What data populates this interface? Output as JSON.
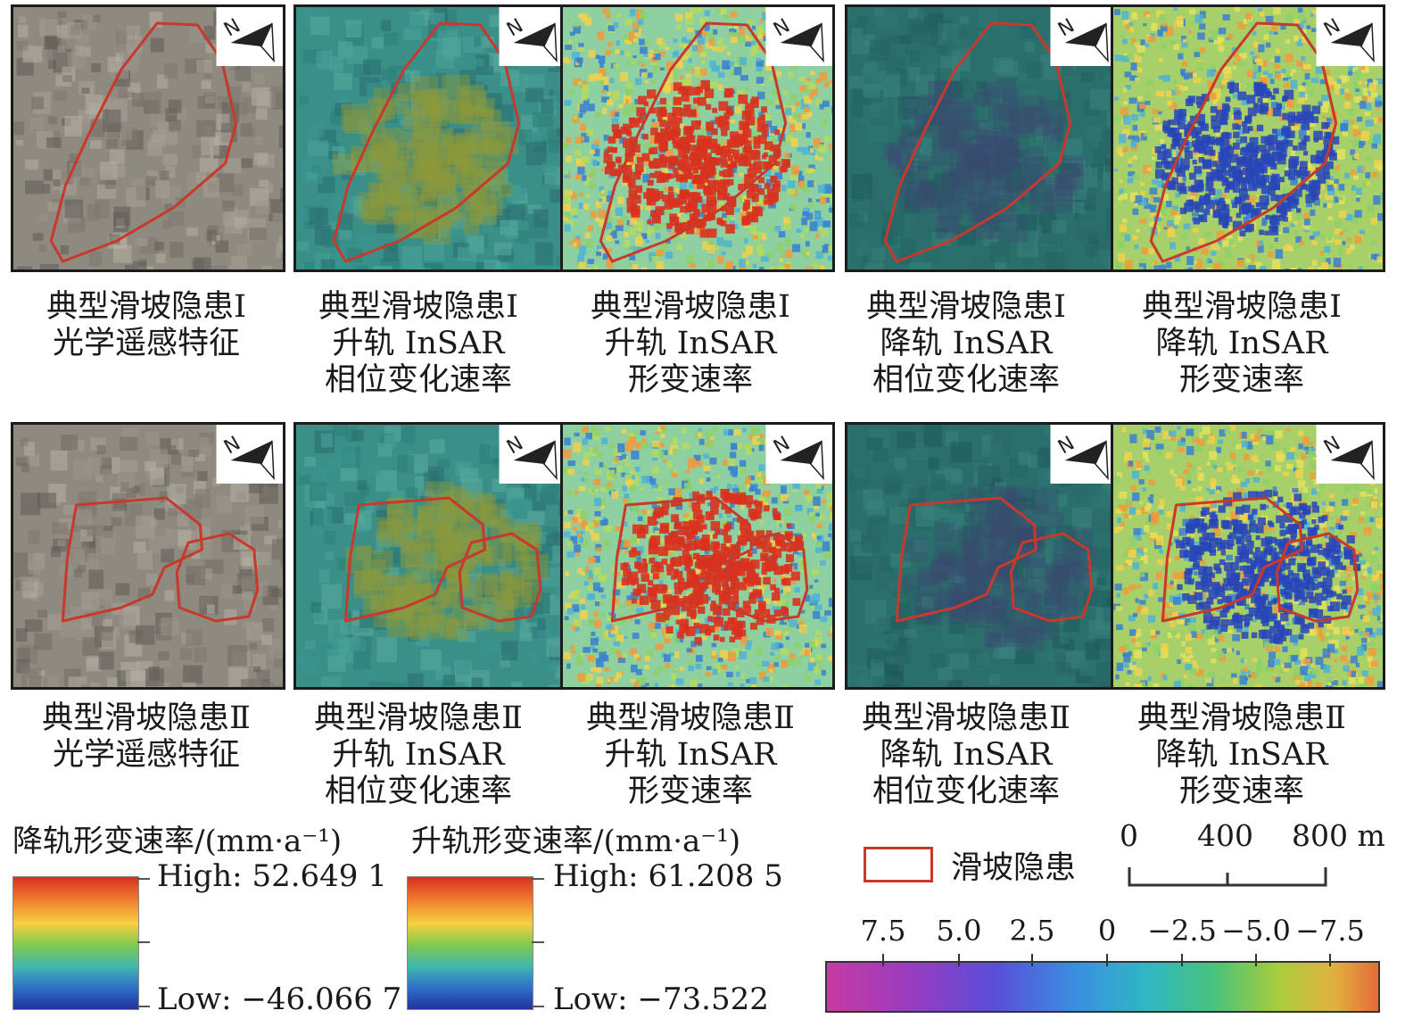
{
  "panels": [
    {
      "caption": [
        "典型滑坡隐患Ⅰ",
        "光学遥感特征"
      ],
      "style": "optical",
      "shape": "I"
    },
    {
      "caption": [
        "典型滑坡隐患Ⅰ",
        "升轨 InSAR",
        "相位变化速率"
      ],
      "style": "phase-warm",
      "shape": "I"
    },
    {
      "caption": [
        "典型滑坡隐患Ⅰ",
        "升轨 InSAR",
        "形变速率"
      ],
      "style": "def-red",
      "shape": "I"
    },
    {
      "caption": [
        "典型滑坡隐患Ⅰ",
        "降轨 InSAR",
        "相位变化速率"
      ],
      "style": "phase-dark",
      "shape": "I"
    },
    {
      "caption": [
        "典型滑坡隐患Ⅰ",
        "降轨 InSAR",
        "形变速率"
      ],
      "style": "def-blue",
      "shape": "I"
    },
    {
      "caption": [
        "典型滑坡隐患Ⅱ",
        "光学遥感特征"
      ],
      "style": "optical",
      "shape": "II"
    },
    {
      "caption": [
        "典型滑坡隐患Ⅱ",
        "升轨 InSAR",
        "相位变化速率"
      ],
      "style": "phase-warm",
      "shape": "II"
    },
    {
      "caption": [
        "典型滑坡隐患Ⅱ",
        "升轨 InSAR",
        "形变速率"
      ],
      "style": "def-red",
      "shape": "II"
    },
    {
      "caption": [
        "典型滑坡隐患Ⅱ",
        "降轨 InSAR",
        "相位变化速率"
      ],
      "style": "phase-dark",
      "shape": "II"
    },
    {
      "caption": [
        "典型滑坡隐患Ⅱ",
        "降轨 InSAR",
        "形变速率"
      ],
      "style": "def-blue",
      "shape": "II"
    }
  ],
  "legend_desc": {
    "title": "降轨形变速率/(mm·a⁻¹)",
    "high": "High: 52.649 1",
    "low": "Low: −46.066 7"
  },
  "legend_asc": {
    "title": "升轨形变速率/(mm·a⁻¹)",
    "high": "High: 61.208 5",
    "low": "Low: −73.522"
  },
  "boundary_legend": {
    "label": "滑坡隐患",
    "color": "#c8392b"
  },
  "scale_bar": {
    "labels": [
      "0",
      "400",
      "800 m"
    ]
  },
  "phase_colorbar": {
    "ticks": [
      "7.5",
      "5.0",
      "2.5",
      "0",
      "−2.5",
      "−5.0",
      "−7.5"
    ]
  },
  "north_arrow": {
    "letter": "N"
  },
  "colors": {
    "boundary": "#c8392b",
    "frame": "#1b1b1b"
  }
}
